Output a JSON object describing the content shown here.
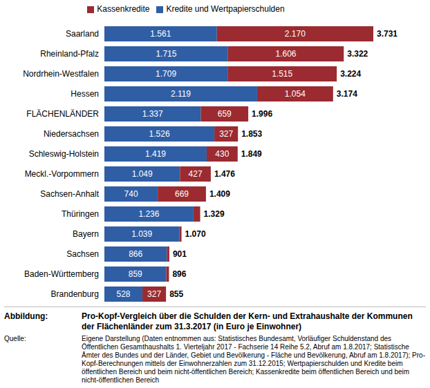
{
  "chart_data": {
    "type": "bar",
    "orientation": "horizontal",
    "stacked": true,
    "data_labels": true,
    "tick_labels": "y",
    "legend": "top",
    "grid": false,
    "categories": [
      "Saarland",
      "Rheinland-Pfalz",
      "Nordrhein-Westfalen",
      "Hessen",
      "FLÄCHENLÄNDER",
      "Niedersachsen",
      "Schleswig-Holstein",
      "Meckl.-Vorpommern",
      "Sachsen-Anhalt",
      "Thüringen",
      "Bayern",
      "Sachsen",
      "Baden-Württemberg",
      "Brandenburg"
    ],
    "xlim": [
      0,
      3731
    ],
    "series": [
      {
        "name": "Kredite und Wertpapierschulden",
        "color": "#2f5ea5",
        "values": [
          1561,
          1715,
          1709,
          2119,
          1337,
          1526,
          1419,
          1049,
          740,
          1236,
          1039,
          866,
          859,
          528
        ],
        "value_labels": [
          "1.561",
          "1.715",
          "1.709",
          "2.119",
          "1.337",
          "1.526",
          "1.419",
          "1.049",
          "740",
          "1.236",
          "1.039",
          "866",
          "859",
          "528"
        ]
      },
      {
        "name": "Kassenkredite",
        "color": "#9b2b30",
        "values": [
          2170,
          1606,
          1515,
          1054,
          659,
          327,
          430,
          427,
          669,
          93,
          31,
          35,
          37,
          327
        ],
        "value_labels": [
          "2.170",
          "1.606",
          "1.515",
          "1.054",
          "659",
          "327",
          "430",
          "427",
          "669",
          null,
          null,
          null,
          null,
          "327"
        ]
      }
    ],
    "totals": {
      "values": [
        3731,
        3322,
        3224,
        3174,
        1996,
        1853,
        1849,
        1476,
        1409,
        1329,
        1070,
        901,
        896,
        855
      ],
      "value_labels": [
        "3.731",
        "3.322",
        "3.224",
        "3.174",
        "1.996",
        "1.853",
        "1.849",
        "1.476",
        "1.409",
        "1.329",
        "1.070",
        "901",
        "896",
        "855"
      ]
    },
    "title_label": "Abbildung:",
    "title": "Pro-Kopf-Vergleich über die Schulden der Kern- und Extrahaushalte der Kommunen der Flächenländer zum 31.3.2017 (in Euro je Einwohner)",
    "source_label": "Quelle:",
    "source": "Eigene Darstellung (Daten entnommen aus: Statistisches Bundesamt, Vorläufiger Schuldenstand des Öffentlichen Gesamthaushalts 1. Vierteljahr 2017 - Fachserie 14  Reihe 5.2, Abruf am 1.8.2017; Statistische Ämter des Bundes und der Länder, Gebiet und Bevölkerung - Fläche und Bevölkerung, Abruf am 1.8.2017); Pro-Kopf-Berechnungen mittels der Einwohnerzahlen zum 31.12.2015; Wertpapierschulden und Kredite beim öffentlichen Bereich und beim nicht-öffentlichen Bereich; Kassenkredite beim öffentlichen Bereich und beim nicht-öffentlichen Bereich"
  }
}
